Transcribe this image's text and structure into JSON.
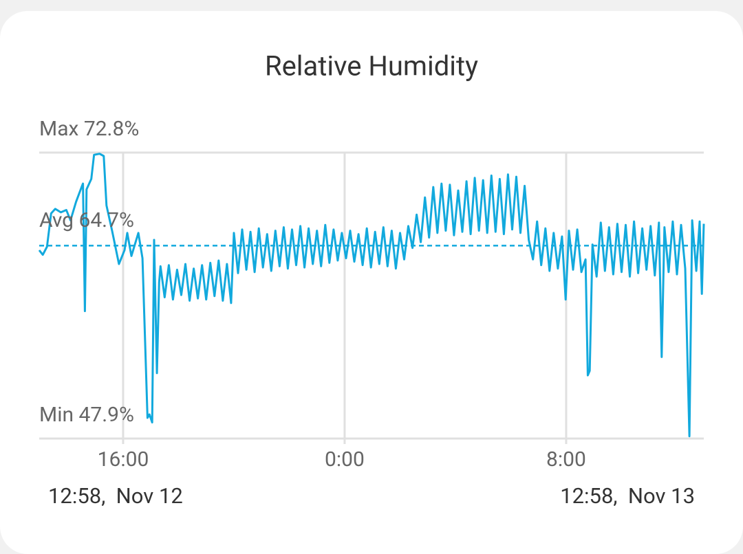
{
  "chart_data": {
    "type": "line",
    "title": "Relative Humidity",
    "range_labels": [
      "12:58,  Nov 12",
      "12:58,  Nov 13"
    ],
    "xlim": [
      12.97,
      36.97
    ],
    "xticks": [
      {
        "value": 16,
        "label": "16:00"
      },
      {
        "value": 24,
        "label": "0:00"
      },
      {
        "value": 32,
        "label": "8:00"
      }
    ],
    "ylim": [
      47.9,
      72.8
    ],
    "yticks": [
      {
        "value": 72.8,
        "label": "Max 72.8%"
      },
      {
        "value": 47.9,
        "label": "Min 47.9%"
      }
    ],
    "average": {
      "value": 64.7,
      "label": "Avg 64.7%"
    },
    "grid": true,
    "series": [
      {
        "color": "#12a9dd",
        "x": [
          12.97,
          13.1,
          13.25,
          13.4,
          13.55,
          13.75,
          13.95,
          14.1,
          14.3,
          14.5,
          14.55,
          14.62,
          14.68,
          14.85,
          14.95,
          15.15,
          15.3,
          15.4,
          15.6,
          15.85,
          16.05,
          16.15,
          16.3,
          16.55,
          16.7,
          16.88,
          16.95,
          17.05,
          17.12,
          17.22,
          17.3,
          17.35,
          17.5,
          17.65,
          17.8,
          17.95,
          18.1,
          18.25,
          18.4,
          18.55,
          18.7,
          18.85,
          19.0,
          19.15,
          19.3,
          19.45,
          19.6,
          19.75,
          19.9,
          20.0,
          20.15,
          20.3,
          20.45,
          20.6,
          20.75,
          20.9,
          21.05,
          21.2,
          21.35,
          21.5,
          21.65,
          21.8,
          21.95,
          22.1,
          22.25,
          22.4,
          22.55,
          22.7,
          22.85,
          23.0,
          23.15,
          23.3,
          23.45,
          23.6,
          23.75,
          23.9,
          24.05,
          24.2,
          24.35,
          24.5,
          24.65,
          24.8,
          24.95,
          25.1,
          25.25,
          25.4,
          25.55,
          25.7,
          25.85,
          26.0,
          26.15,
          26.3,
          26.45,
          26.6,
          26.75,
          26.9,
          27.05,
          27.2,
          27.35,
          27.5,
          27.65,
          27.8,
          27.95,
          28.1,
          28.25,
          28.4,
          28.55,
          28.7,
          28.85,
          29.0,
          29.15,
          29.3,
          29.45,
          29.6,
          29.75,
          29.9,
          30.05,
          30.2,
          30.35,
          30.5,
          30.65,
          30.8,
          30.95,
          31.1,
          31.25,
          31.4,
          31.55,
          31.7,
          31.85,
          31.98,
          32.1,
          32.25,
          32.4,
          32.55,
          32.7,
          32.78,
          32.85,
          32.95,
          33.1,
          33.25,
          33.4,
          33.55,
          33.7,
          33.85,
          34.0,
          34.15,
          34.3,
          34.45,
          34.6,
          34.75,
          34.9,
          35.05,
          35.2,
          35.35,
          35.45,
          35.55,
          35.7,
          35.85,
          36.0,
          36.15,
          36.3,
          36.45,
          36.55,
          36.7,
          36.82,
          36.9,
          36.97
        ],
        "values": [
          64.3,
          63.9,
          64.6,
          67.5,
          67.9,
          67.6,
          67.8,
          66.9,
          68.5,
          69.8,
          70.1,
          59.0,
          69.6,
          70.5,
          72.6,
          72.7,
          72.5,
          68.2,
          66.0,
          63.1,
          64.3,
          65.8,
          63.8,
          65.8,
          63.6,
          49.7,
          50.0,
          49.3,
          65.2,
          53.6,
          61.5,
          62.9,
          60.2,
          63.0,
          60.0,
          62.6,
          60.4,
          63.1,
          59.9,
          62.7,
          60.1,
          63.0,
          60.0,
          63.2,
          60.3,
          63.4,
          59.9,
          63.1,
          59.7,
          65.8,
          62.3,
          66.1,
          62.6,
          65.9,
          62.4,
          66.2,
          62.8,
          65.7,
          62.5,
          66.0,
          62.9,
          66.3,
          62.7,
          66.1,
          63.0,
          66.4,
          62.8,
          66.2,
          63.1,
          66.0,
          62.9,
          66.5,
          63.2,
          66.1,
          63.4,
          65.8,
          63.6,
          66.0,
          63.3,
          65.7,
          63.0,
          66.2,
          62.8,
          65.9,
          63.1,
          66.3,
          62.9,
          66.0,
          62.7,
          65.8,
          63.5,
          66.4,
          64.5,
          67.4,
          65.0,
          68.9,
          65.4,
          69.8,
          65.8,
          70.1,
          66.0,
          70.0,
          65.6,
          69.5,
          65.9,
          70.3,
          65.7,
          70.6,
          66.0,
          70.4,
          65.8,
          70.8,
          65.9,
          70.5,
          65.7,
          70.9,
          66.1,
          70.7,
          65.8,
          69.9,
          65.2,
          63.5,
          66.8,
          63.0,
          66.2,
          62.5,
          65.8,
          62.7,
          65.5,
          60.0,
          66.0,
          62.6,
          66.1,
          62.4,
          63.5,
          53.4,
          53.8,
          64.8,
          62.0,
          66.7,
          62.5,
          66.3,
          62.2,
          66.6,
          62.4,
          66.5,
          62.0,
          66.8,
          62.3,
          66.2,
          62.6,
          66.4,
          62.1,
          66.7,
          55.0,
          66.3,
          62.4,
          66.8,
          62.2,
          66.5,
          62.7,
          48.1,
          66.9,
          62.5,
          66.8,
          60.5,
          66.6
        ]
      }
    ]
  }
}
